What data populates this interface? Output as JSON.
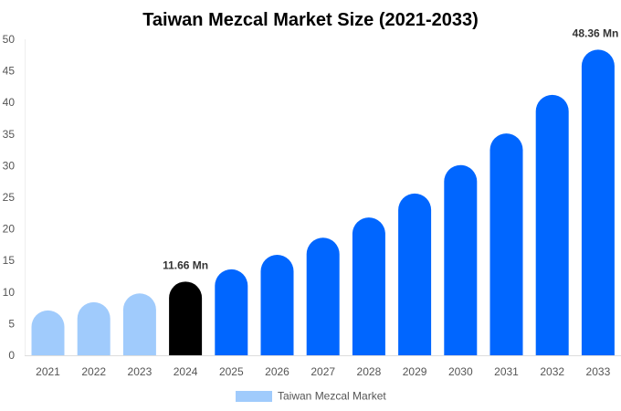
{
  "chart_data": {
    "type": "bar",
    "title": "Taiwan Mezcal Market Size (2021-2033)",
    "categories": [
      "2021",
      "2022",
      "2023",
      "2024",
      "2025",
      "2026",
      "2027",
      "2028",
      "2029",
      "2030",
      "2031",
      "2032",
      "2033"
    ],
    "series": [
      {
        "name": "Taiwan Mezcal Market",
        "values": [
          7.1,
          8.4,
          9.8,
          11.66,
          13.6,
          15.9,
          18.6,
          21.8,
          25.6,
          30.1,
          35.1,
          41.2,
          48.36
        ]
      }
    ],
    "data_labels": [
      {
        "category": "2024",
        "text": "11.66 Mn"
      },
      {
        "category": "2033",
        "text": "48.36 Mn"
      }
    ],
    "ylim": [
      0,
      50
    ],
    "yticks": [
      0,
      5,
      10,
      15,
      20,
      25,
      30,
      35,
      40,
      45,
      50
    ],
    "xlabel": "",
    "ylabel": "",
    "grid": false,
    "legend_position": "bottom",
    "colors": {
      "historical": "#a0cbfc",
      "current": "#000000",
      "forecast": "#0066ff"
    },
    "color_groups": [
      "historical",
      "historical",
      "historical",
      "current",
      "forecast",
      "forecast",
      "forecast",
      "forecast",
      "forecast",
      "forecast",
      "forecast",
      "forecast",
      "forecast"
    ]
  }
}
